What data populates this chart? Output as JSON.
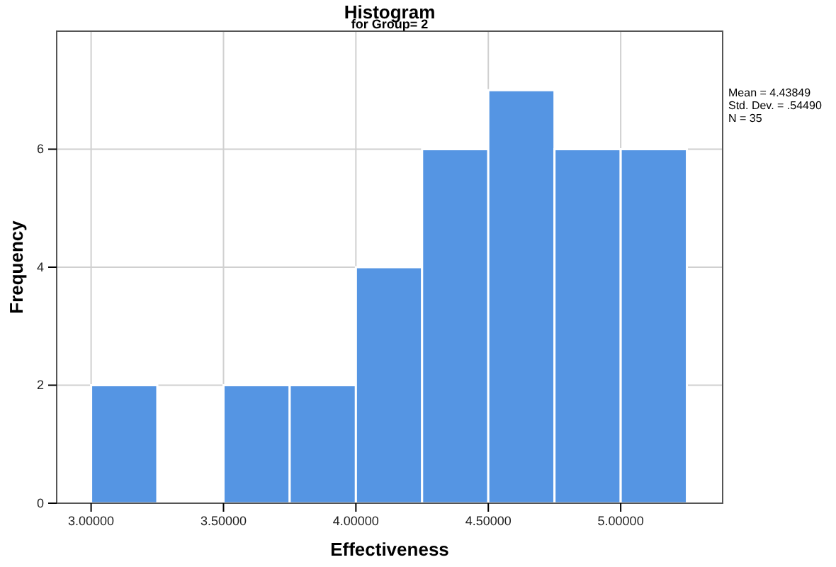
{
  "chart_data": {
    "type": "histogram",
    "title": "Histogram",
    "subtitle": "for Group= 2",
    "xlabel": "Effectiveness",
    "ylabel": "Frequency",
    "bins": [
      3.0,
      3.25,
      3.5,
      3.75,
      4.0,
      4.25,
      4.5,
      4.75,
      5.0,
      5.25
    ],
    "values": [
      2,
      0,
      2,
      2,
      4,
      6,
      7,
      6,
      6
    ],
    "color": "#5595e3",
    "xlim": [
      2.87,
      5.385
    ],
    "ylim": [
      0,
      8
    ],
    "xticks": [
      {
        "value": 3,
        "label": "3.00000"
      },
      {
        "value": 3.5,
        "label": "3.50000"
      },
      {
        "value": 4,
        "label": "4.00000"
      },
      {
        "value": 4.5,
        "label": "4.50000"
      },
      {
        "value": 5,
        "label": "5.00000"
      }
    ],
    "yticks": [
      0,
      2,
      4,
      6
    ],
    "grid": true,
    "annotations": [
      "Mean = 4.43849",
      "Std. Dev. = .54490",
      "N = 35"
    ]
  }
}
